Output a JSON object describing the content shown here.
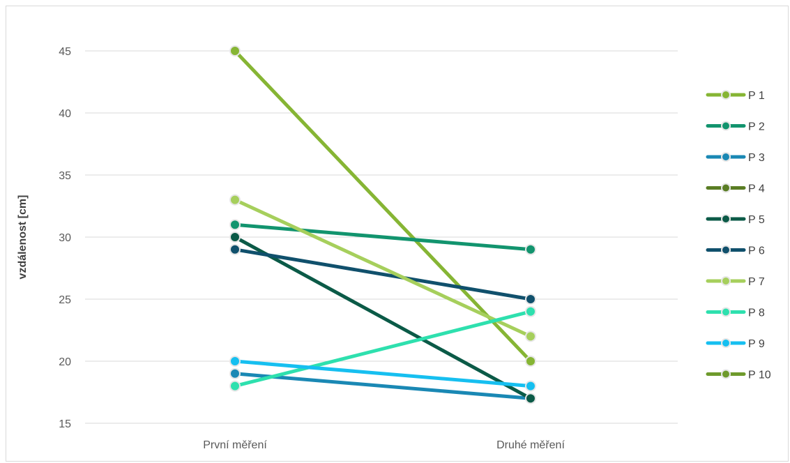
{
  "chart_data": {
    "type": "line",
    "title": "",
    "xlabel": "",
    "ylabel": "vzdálenost [cm]",
    "categories": [
      "První měření",
      "Druhé měření"
    ],
    "ylim": [
      15,
      45
    ],
    "yticks": [
      "15",
      "20",
      "25",
      "30",
      "35",
      "40",
      "45"
    ],
    "grid": true,
    "legend_position": "right",
    "series": [
      {
        "name": "P 1",
        "values": [
          45,
          20
        ],
        "color": "#86b534"
      },
      {
        "name": "P 2",
        "values": [
          31,
          29
        ],
        "color": "#12946e"
      },
      {
        "name": "P 3",
        "values": [
          19,
          17
        ],
        "color": "#1a88b4"
      },
      {
        "name": "P 4",
        "values": [
          null,
          null
        ],
        "color": "#5a7d24"
      },
      {
        "name": "P 5",
        "values": [
          30,
          17
        ],
        "color": "#0b5a47"
      },
      {
        "name": "P 6",
        "values": [
          29,
          25
        ],
        "color": "#10506c"
      },
      {
        "name": "P 7",
        "values": [
          33,
          22
        ],
        "color": "#a6cf5c"
      },
      {
        "name": "P 8",
        "values": [
          18,
          24
        ],
        "color": "#2ee0ae"
      },
      {
        "name": "P 9",
        "values": [
          20,
          18
        ],
        "color": "#16bff0"
      },
      {
        "name": "P 10",
        "values": [
          null,
          null
        ],
        "color": "#6e9a2c"
      }
    ]
  }
}
